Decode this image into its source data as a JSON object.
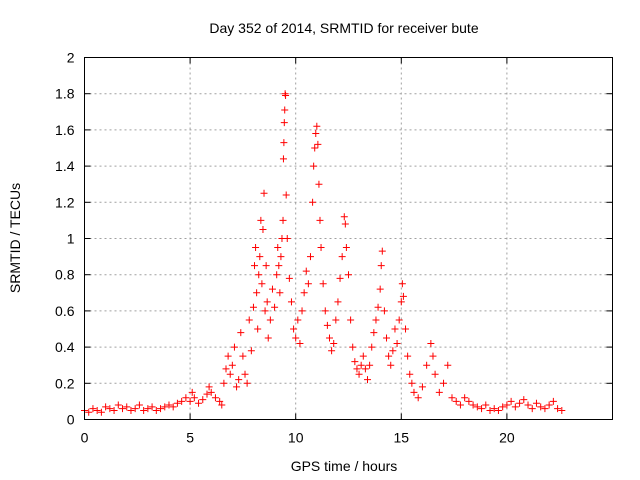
{
  "chart_data": {
    "type": "scatter",
    "title": "Day 352 of 2014, SRMTID for receiver bute",
    "xlabel": "GPS time / hours",
    "ylabel": "SRMTID / TECUs",
    "xlim": [
      0,
      25
    ],
    "ylim": [
      0,
      2
    ],
    "xticks": [
      0,
      5,
      10,
      15,
      20
    ],
    "xtick_labels": [
      "0",
      "5",
      "10",
      "15",
      "20"
    ],
    "yticks": [
      0,
      0.2,
      0.4,
      0.6,
      0.8,
      1,
      1.2,
      1.4,
      1.6,
      1.8,
      2
    ],
    "ytick_labels": [
      "0",
      "0.2",
      "0.4",
      "0.6",
      "0.8",
      "1",
      "1.2",
      "1.4",
      "1.6",
      "1.8",
      "2"
    ],
    "grid": true,
    "marker": "+",
    "marker_color": "#ff0000",
    "series": [
      {
        "name": "SRMTID",
        "points": [
          [
            0.0,
            0.05
          ],
          [
            0.2,
            0.04
          ],
          [
            0.4,
            0.06
          ],
          [
            0.6,
            0.05
          ],
          [
            0.8,
            0.04
          ],
          [
            1.0,
            0.07
          ],
          [
            1.2,
            0.06
          ],
          [
            1.4,
            0.05
          ],
          [
            1.6,
            0.08
          ],
          [
            1.8,
            0.06
          ],
          [
            2.0,
            0.07
          ],
          [
            2.2,
            0.05
          ],
          [
            2.4,
            0.06
          ],
          [
            2.6,
            0.08
          ],
          [
            2.8,
            0.05
          ],
          [
            3.0,
            0.06
          ],
          [
            3.2,
            0.07
          ],
          [
            3.4,
            0.05
          ],
          [
            3.6,
            0.06
          ],
          [
            3.8,
            0.07
          ],
          [
            4.0,
            0.08
          ],
          [
            4.2,
            0.07
          ],
          [
            4.4,
            0.09
          ],
          [
            4.6,
            0.1
          ],
          [
            4.8,
            0.12
          ],
          [
            5.0,
            0.1
          ],
          [
            5.1,
            0.15
          ],
          [
            5.2,
            0.12
          ],
          [
            5.4,
            0.09
          ],
          [
            5.6,
            0.11
          ],
          [
            5.8,
            0.14
          ],
          [
            5.9,
            0.18
          ],
          [
            6.0,
            0.15
          ],
          [
            6.2,
            0.12
          ],
          [
            6.4,
            0.1
          ],
          [
            6.5,
            0.08
          ],
          [
            6.6,
            0.2
          ],
          [
            6.7,
            0.28
          ],
          [
            6.8,
            0.35
          ],
          [
            6.9,
            0.25
          ],
          [
            7.0,
            0.3
          ],
          [
            7.1,
            0.4
          ],
          [
            7.2,
            0.18
          ],
          [
            7.3,
            0.22
          ],
          [
            7.4,
            0.48
          ],
          [
            7.5,
            0.35
          ],
          [
            7.6,
            0.25
          ],
          [
            7.7,
            0.2
          ],
          [
            7.8,
            0.55
          ],
          [
            7.9,
            0.38
          ],
          [
            8.0,
            0.62
          ],
          [
            8.05,
            0.85
          ],
          [
            8.1,
            0.95
          ],
          [
            8.15,
            0.7
          ],
          [
            8.2,
            0.5
          ],
          [
            8.25,
            0.8
          ],
          [
            8.3,
            0.9
          ],
          [
            8.35,
            1.1
          ],
          [
            8.4,
            0.75
          ],
          [
            8.45,
            1.05
          ],
          [
            8.5,
            1.25
          ],
          [
            8.55,
            0.6
          ],
          [
            8.6,
            0.85
          ],
          [
            8.65,
            0.65
          ],
          [
            8.7,
            0.45
          ],
          [
            8.8,
            0.55
          ],
          [
            8.9,
            0.72
          ],
          [
            9.0,
            0.62
          ],
          [
            9.1,
            0.8
          ],
          [
            9.15,
            0.95
          ],
          [
            9.2,
            0.85
          ],
          [
            9.25,
            0.7
          ],
          [
            9.3,
            0.9
          ],
          [
            9.35,
            1.0
          ],
          [
            9.4,
            1.1
          ],
          [
            9.42,
            1.44
          ],
          [
            9.44,
            1.53
          ],
          [
            9.46,
            1.64
          ],
          [
            9.48,
            1.71
          ],
          [
            9.5,
            1.8
          ],
          [
            9.52,
            1.79
          ],
          [
            9.55,
            1.24
          ],
          [
            9.6,
            1.0
          ],
          [
            9.7,
            0.78
          ],
          [
            9.8,
            0.65
          ],
          [
            9.9,
            0.5
          ],
          [
            10.0,
            0.45
          ],
          [
            10.1,
            0.55
          ],
          [
            10.2,
            0.42
          ],
          [
            10.3,
            0.6
          ],
          [
            10.4,
            0.7
          ],
          [
            10.5,
            0.82
          ],
          [
            10.6,
            0.75
          ],
          [
            10.7,
            0.9
          ],
          [
            10.8,
            1.2
          ],
          [
            10.85,
            1.4
          ],
          [
            10.9,
            1.5
          ],
          [
            10.95,
            1.58
          ],
          [
            11.0,
            1.62
          ],
          [
            11.05,
            1.52
          ],
          [
            11.1,
            1.3
          ],
          [
            11.15,
            1.1
          ],
          [
            11.2,
            0.95
          ],
          [
            11.3,
            0.75
          ],
          [
            11.4,
            0.6
          ],
          [
            11.5,
            0.52
          ],
          [
            11.6,
            0.45
          ],
          [
            11.7,
            0.38
          ],
          [
            11.8,
            0.42
          ],
          [
            11.9,
            0.55
          ],
          [
            12.0,
            0.65
          ],
          [
            12.1,
            0.78
          ],
          [
            12.2,
            0.9
          ],
          [
            12.3,
            1.12
          ],
          [
            12.35,
            1.08
          ],
          [
            12.4,
            0.95
          ],
          [
            12.5,
            0.8
          ],
          [
            12.6,
            0.55
          ],
          [
            12.7,
            0.4
          ],
          [
            12.8,
            0.32
          ],
          [
            12.9,
            0.28
          ],
          [
            13.0,
            0.25
          ],
          [
            13.1,
            0.3
          ],
          [
            13.2,
            0.35
          ],
          [
            13.3,
            0.28
          ],
          [
            13.4,
            0.22
          ],
          [
            13.5,
            0.3
          ],
          [
            13.6,
            0.4
          ],
          [
            13.7,
            0.48
          ],
          [
            13.8,
            0.55
          ],
          [
            13.9,
            0.62
          ],
          [
            14.0,
            0.72
          ],
          [
            14.05,
            0.85
          ],
          [
            14.1,
            0.93
          ],
          [
            14.2,
            0.6
          ],
          [
            14.3,
            0.45
          ],
          [
            14.4,
            0.35
          ],
          [
            14.5,
            0.3
          ],
          [
            14.6,
            0.38
          ],
          [
            14.7,
            0.5
          ],
          [
            14.8,
            0.42
          ],
          [
            14.9,
            0.55
          ],
          [
            15.0,
            0.65
          ],
          [
            15.05,
            0.75
          ],
          [
            15.1,
            0.68
          ],
          [
            15.2,
            0.5
          ],
          [
            15.3,
            0.35
          ],
          [
            15.4,
            0.25
          ],
          [
            15.5,
            0.2
          ],
          [
            15.6,
            0.15
          ],
          [
            15.8,
            0.12
          ],
          [
            16.0,
            0.18
          ],
          [
            16.2,
            0.3
          ],
          [
            16.4,
            0.42
          ],
          [
            16.5,
            0.35
          ],
          [
            16.6,
            0.25
          ],
          [
            16.8,
            0.15
          ],
          [
            17.0,
            0.2
          ],
          [
            17.2,
            0.3
          ],
          [
            17.4,
            0.12
          ],
          [
            17.6,
            0.1
          ],
          [
            17.8,
            0.08
          ],
          [
            18.0,
            0.12
          ],
          [
            18.2,
            0.1
          ],
          [
            18.4,
            0.08
          ],
          [
            18.6,
            0.07
          ],
          [
            18.8,
            0.06
          ],
          [
            19.0,
            0.08
          ],
          [
            19.2,
            0.05
          ],
          [
            19.4,
            0.06
          ],
          [
            19.6,
            0.05
          ],
          [
            19.8,
            0.07
          ],
          [
            20.0,
            0.08
          ],
          [
            20.2,
            0.1
          ],
          [
            20.4,
            0.07
          ],
          [
            20.6,
            0.09
          ],
          [
            20.8,
            0.11
          ],
          [
            21.0,
            0.08
          ],
          [
            21.2,
            0.06
          ],
          [
            21.4,
            0.09
          ],
          [
            21.6,
            0.07
          ],
          [
            21.8,
            0.06
          ],
          [
            22.0,
            0.08
          ],
          [
            22.2,
            0.1
          ],
          [
            22.4,
            0.06
          ],
          [
            22.6,
            0.05
          ]
        ]
      }
    ]
  }
}
